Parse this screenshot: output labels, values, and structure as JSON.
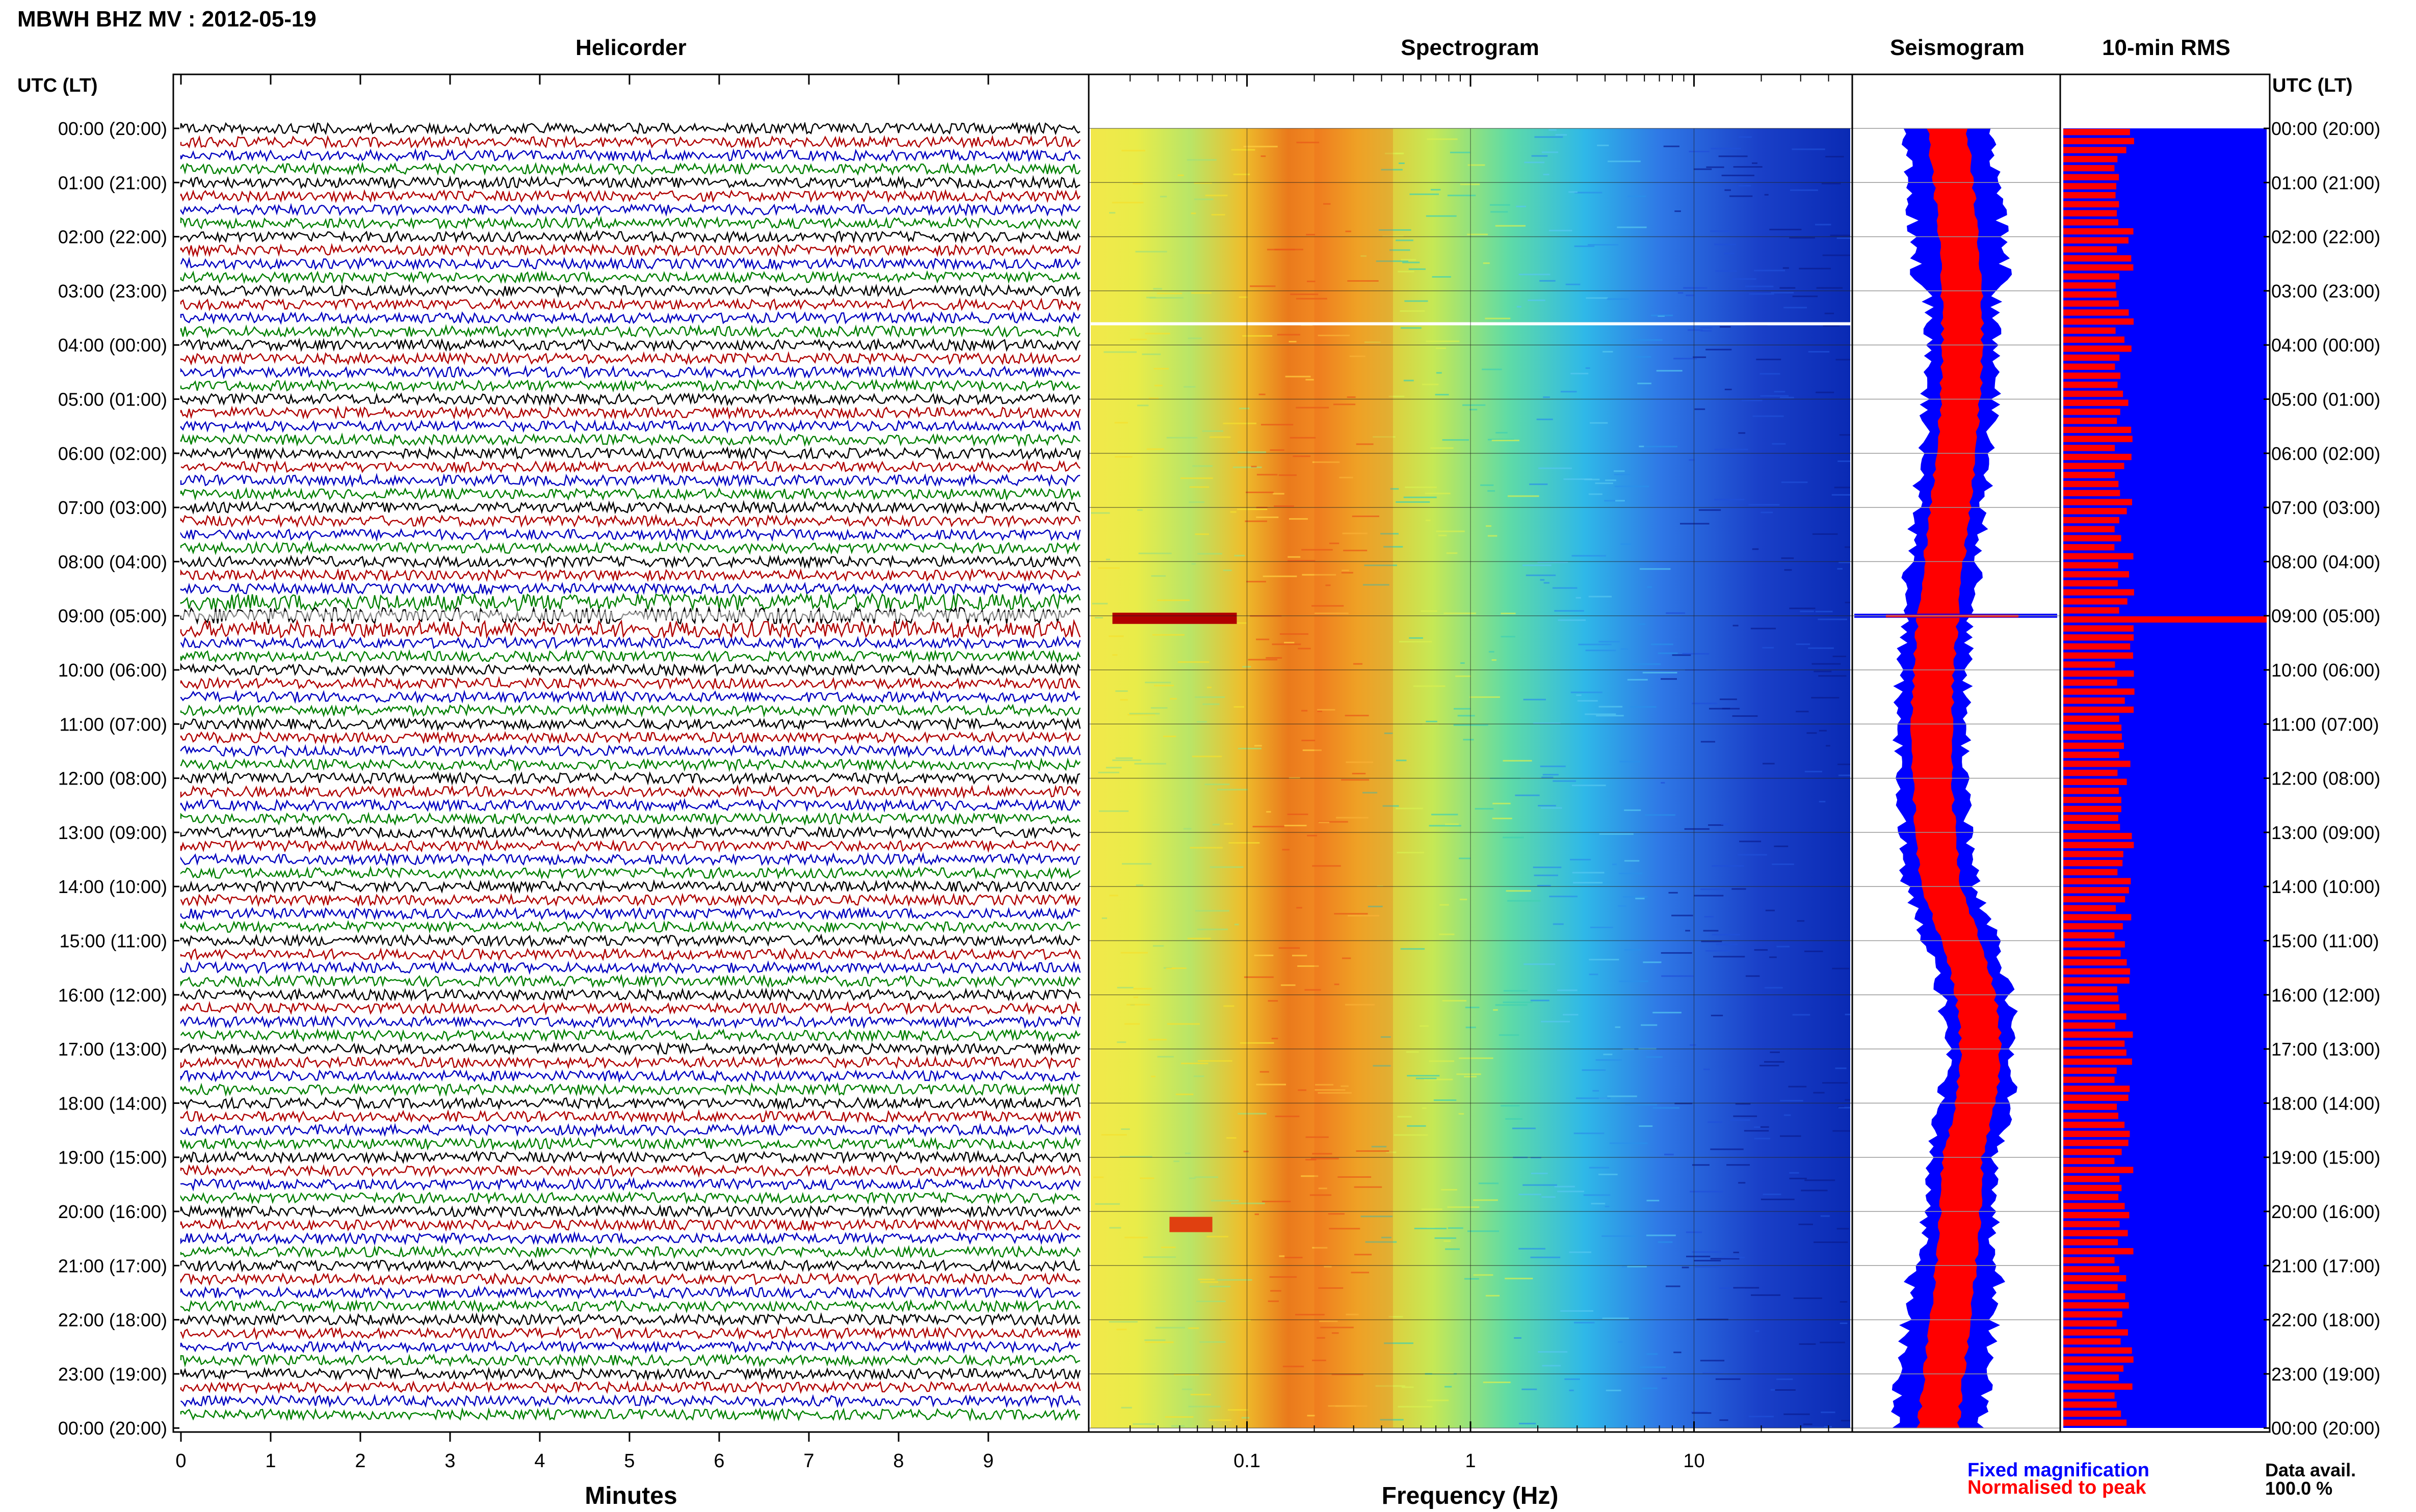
{
  "header": {
    "station_title": "MBWH BHZ MV : 2012-05-19",
    "utc_lt_left": "UTC (LT)",
    "utc_lt_right": "UTC (LT)"
  },
  "panels": {
    "helicorder_title": "Helicorder",
    "spectrogram_title": "Spectrogram",
    "seismogram_title": "Seismogram",
    "rms_title": "10-min RMS"
  },
  "time_labels": [
    "00:00 (20:00)",
    "01:00 (21:00)",
    "02:00 (22:00)",
    "03:00 (23:00)",
    "04:00 (00:00)",
    "05:00 (01:00)",
    "06:00 (02:00)",
    "07:00 (03:00)",
    "08:00 (04:00)",
    "09:00 (05:00)",
    "10:00 (06:00)",
    "11:00 (07:00)",
    "12:00 (08:00)",
    "13:00 (09:00)",
    "14:00 (10:00)",
    "15:00 (11:00)",
    "16:00 (12:00)",
    "17:00 (13:00)",
    "18:00 (14:00)",
    "19:00 (15:00)",
    "20:00 (16:00)",
    "21:00 (17:00)",
    "22:00 (18:00)",
    "23:00 (19:00)",
    "00:00 (20:00)"
  ],
  "helicorder_axis": {
    "xlabel": "Minutes",
    "ticks": [
      "0",
      "1",
      "2",
      "3",
      "4",
      "5",
      "6",
      "7",
      "8",
      "9"
    ]
  },
  "spectrogram_axis": {
    "xlabel": "Frequency (Hz)",
    "ticks": [
      "0.1",
      "1",
      "10"
    ]
  },
  "legend": {
    "fixed_label": "Fixed magnification",
    "normalised_label": "Normalised to peak",
    "fixed_color": "#0000ff",
    "normalised_color": "#ff0000"
  },
  "data_availability": {
    "label": "Data avail.",
    "value": "100.0 %"
  },
  "chart_data": {
    "type": "heatmap",
    "title": "MBWH BHZ MV : 2012-05-19",
    "panels": [
      "Helicorder",
      "Spectrogram",
      "Seismogram",
      "10-min RMS"
    ],
    "helicorder": {
      "xlabel": "Minutes",
      "xlim": [
        0,
        10
      ],
      "trace_colors": [
        "#000000",
        "#b00000",
        "#0000c0",
        "#008000"
      ],
      "event_time_utc": "09:00"
    },
    "spectrogram": {
      "xlabel": "Frequency (Hz)",
      "scale": "log",
      "xlim": [
        0.02,
        50
      ],
      "peak_band_hz": [
        0.2,
        0.5
      ],
      "event_band_hz": [
        0.03,
        0.1
      ],
      "event_times_utc": [
        "09:00",
        "20:10"
      ],
      "gap_time_utc": "03:35"
    },
    "seismogram": {
      "spike_time_utc": "09:00"
    },
    "rms_10min": {
      "spike_time_utc": "09:00",
      "series": [
        {
          "name": "Fixed magnification",
          "color": "#0000ff"
        },
        {
          "name": "Normalised to peak",
          "color": "#ff0000"
        }
      ]
    },
    "y_axis": {
      "label": "UTC (LT)",
      "range_hours": [
        0,
        24
      ]
    },
    "data_availability_percent": 100.0
  }
}
